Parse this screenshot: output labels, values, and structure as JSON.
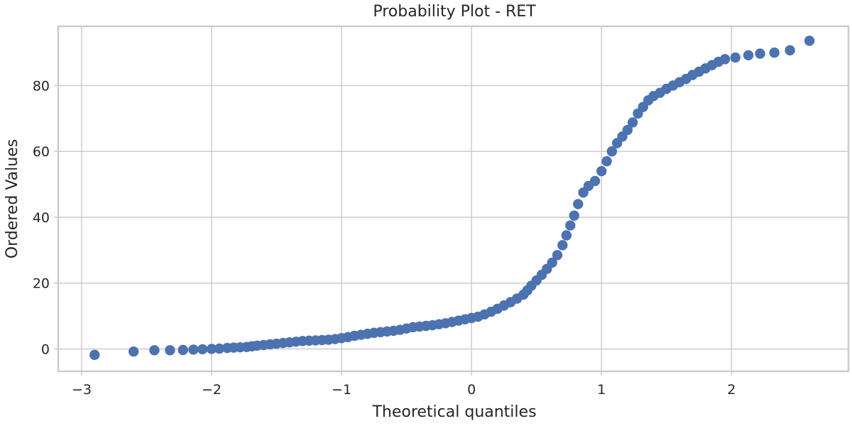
{
  "chart_data": {
    "type": "scatter",
    "title": "Probability Plot - RET",
    "xlabel": "Theoretical quantiles",
    "ylabel": "Ordered Values",
    "xlim": [
      -3.18,
      2.9
    ],
    "ylim": [
      -6.8,
      98
    ],
    "xticks": [
      -3,
      -2,
      -1,
      0,
      1,
      2
    ],
    "xtick_labels": [
      "−3",
      "−2",
      "−1",
      "0",
      "1",
      "2"
    ],
    "yticks": [
      0,
      20,
      40,
      60,
      80
    ],
    "ytick_labels": [
      "0",
      "20",
      "40",
      "60",
      "80"
    ],
    "grid": true,
    "marker_color": "#4c72b0",
    "series": [
      {
        "points": [
          [
            -2.9,
            -1.8
          ],
          [
            -2.6,
            -0.8
          ],
          [
            -2.44,
            -0.4
          ],
          [
            -2.32,
            -0.4
          ],
          [
            -2.22,
            -0.3
          ],
          [
            -2.14,
            -0.2
          ],
          [
            -2.07,
            -0.1
          ],
          [
            -2.0,
            0.0
          ],
          [
            -1.94,
            0.1
          ],
          [
            -1.88,
            0.3
          ],
          [
            -1.83,
            0.4
          ],
          [
            -1.78,
            0.5
          ],
          [
            -1.73,
            0.6
          ],
          [
            -1.69,
            0.8
          ],
          [
            -1.65,
            1.0
          ],
          [
            -1.6,
            1.2
          ],
          [
            -1.55,
            1.4
          ],
          [
            -1.5,
            1.6
          ],
          [
            -1.45,
            1.8
          ],
          [
            -1.4,
            2.0
          ],
          [
            -1.35,
            2.2
          ],
          [
            -1.3,
            2.4
          ],
          [
            -1.25,
            2.5
          ],
          [
            -1.2,
            2.6
          ],
          [
            -1.15,
            2.7
          ],
          [
            -1.1,
            2.8
          ],
          [
            -1.05,
            3.0
          ],
          [
            -1.0,
            3.3
          ],
          [
            -0.95,
            3.6
          ],
          [
            -0.9,
            4.0
          ],
          [
            -0.85,
            4.3
          ],
          [
            -0.8,
            4.6
          ],
          [
            -0.75,
            4.9
          ],
          [
            -0.7,
            5.1
          ],
          [
            -0.65,
            5.3
          ],
          [
            -0.6,
            5.5
          ],
          [
            -0.55,
            5.8
          ],
          [
            -0.5,
            6.2
          ],
          [
            -0.45,
            6.6
          ],
          [
            -0.4,
            6.8
          ],
          [
            -0.35,
            7.0
          ],
          [
            -0.3,
            7.2
          ],
          [
            -0.25,
            7.5
          ],
          [
            -0.2,
            7.8
          ],
          [
            -0.15,
            8.2
          ],
          [
            -0.1,
            8.6
          ],
          [
            -0.05,
            9.0
          ],
          [
            0.0,
            9.4
          ],
          [
            0.05,
            9.8
          ],
          [
            0.1,
            10.5
          ],
          [
            0.15,
            11.3
          ],
          [
            0.2,
            12.2
          ],
          [
            0.25,
            13.2
          ],
          [
            0.3,
            14.2
          ],
          [
            0.35,
            15.3
          ],
          [
            0.4,
            16.5
          ],
          [
            0.43,
            17.8
          ],
          [
            0.46,
            19.2
          ],
          [
            0.5,
            20.8
          ],
          [
            0.54,
            22.5
          ],
          [
            0.58,
            24.3
          ],
          [
            0.62,
            26.2
          ],
          [
            0.66,
            28.5
          ],
          [
            0.7,
            31.5
          ],
          [
            0.73,
            34.5
          ],
          [
            0.76,
            37.5
          ],
          [
            0.79,
            40.5
          ],
          [
            0.82,
            44.0
          ],
          [
            0.86,
            47.5
          ],
          [
            0.9,
            49.5
          ],
          [
            0.95,
            51.0
          ],
          [
            1.0,
            54.0
          ],
          [
            1.04,
            57.0
          ],
          [
            1.08,
            60.0
          ],
          [
            1.12,
            62.5
          ],
          [
            1.16,
            64.5
          ],
          [
            1.2,
            66.5
          ],
          [
            1.24,
            68.8
          ],
          [
            1.28,
            71.5
          ],
          [
            1.32,
            73.5
          ],
          [
            1.36,
            75.5
          ],
          [
            1.4,
            76.8
          ],
          [
            1.45,
            77.8
          ],
          [
            1.5,
            79.0
          ],
          [
            1.55,
            80.0
          ],
          [
            1.6,
            81.0
          ],
          [
            1.65,
            82.0
          ],
          [
            1.7,
            83.2
          ],
          [
            1.75,
            84.2
          ],
          [
            1.8,
            85.2
          ],
          [
            1.85,
            86.2
          ],
          [
            1.9,
            87.2
          ],
          [
            1.95,
            88.0
          ],
          [
            2.03,
            88.5
          ],
          [
            2.13,
            89.2
          ],
          [
            2.22,
            89.7
          ],
          [
            2.33,
            90.0
          ],
          [
            2.45,
            90.7
          ],
          [
            2.6,
            93.6
          ]
        ]
      }
    ]
  }
}
